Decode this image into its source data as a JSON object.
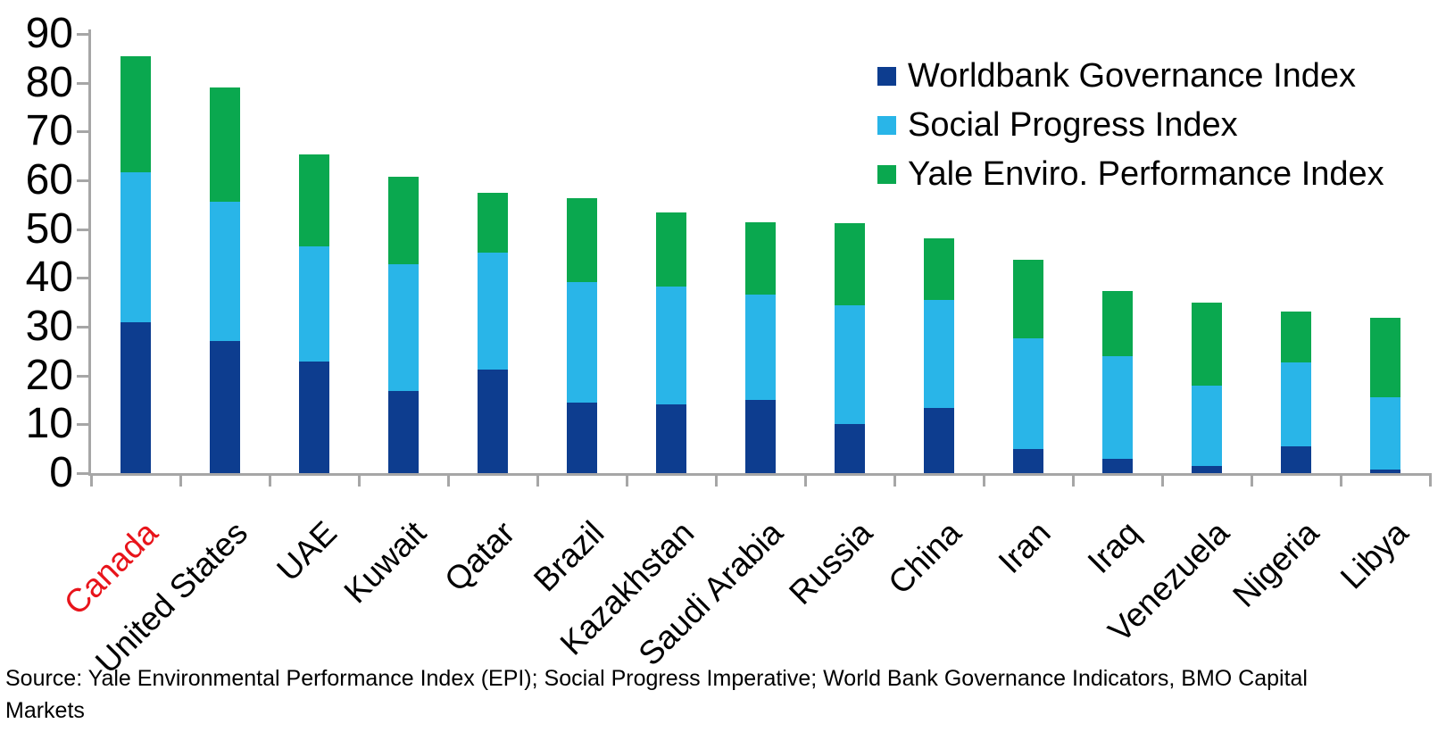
{
  "chart_data": {
    "type": "bar",
    "stacked": true,
    "title": "",
    "xlabel": "",
    "ylabel": "",
    "ylim": [
      0,
      90
    ],
    "yticks": [
      0,
      10,
      20,
      30,
      40,
      50,
      60,
      70,
      80,
      90
    ],
    "grid": false,
    "legend_position": "top-right",
    "axis_color": "#a6a6a6",
    "label_color": "#000000",
    "highlighted_category": "Canada",
    "highlight_color": "#e8141b",
    "categories": [
      "Canada",
      "United States",
      "UAE",
      "Kuwait",
      "Qatar",
      "Brazil",
      "Kazakhstan",
      "Saudi Arabia",
      "Russia",
      "China",
      "Iran",
      "Iraq",
      "Venezuela",
      "Nigeria",
      "Libya"
    ],
    "series": [
      {
        "name": "Worldbank Governance Index",
        "color": "#0d3d8f",
        "values": [
          31,
          27,
          22.9,
          16.9,
          21.3,
          14.5,
          14,
          15,
          10,
          13.4,
          4.9,
          2.9,
          1.5,
          5.5,
          0.8
        ]
      },
      {
        "name": "Social Progress Index",
        "color": "#29b5e8",
        "values": [
          30.6,
          28.6,
          23.5,
          25.9,
          23.8,
          24.6,
          24.3,
          21.5,
          24.3,
          22,
          22.8,
          21,
          16.5,
          17.2,
          14.7
        ]
      },
      {
        "name": "Yale Enviro. Performance Index",
        "color": "#0aa84f",
        "values": [
          23.8,
          23.4,
          18.9,
          17.9,
          12.3,
          17.2,
          15.2,
          14.9,
          16.9,
          12.8,
          16.1,
          13.5,
          17,
          10.5,
          16.3
        ]
      }
    ],
    "stack_totals": [
      85.4,
      79,
      65.3,
      60.7,
      57.4,
      56.3,
      53.5,
      51.4,
      51.2,
      48.2,
      43.8,
      37.4,
      35,
      33.2,
      31.8
    ]
  },
  "source_note": "Source: Yale Environmental Performance Index (EPI); Social Progress Imperative; World Bank Governance Indicators, BMO Capital\nMarkets"
}
